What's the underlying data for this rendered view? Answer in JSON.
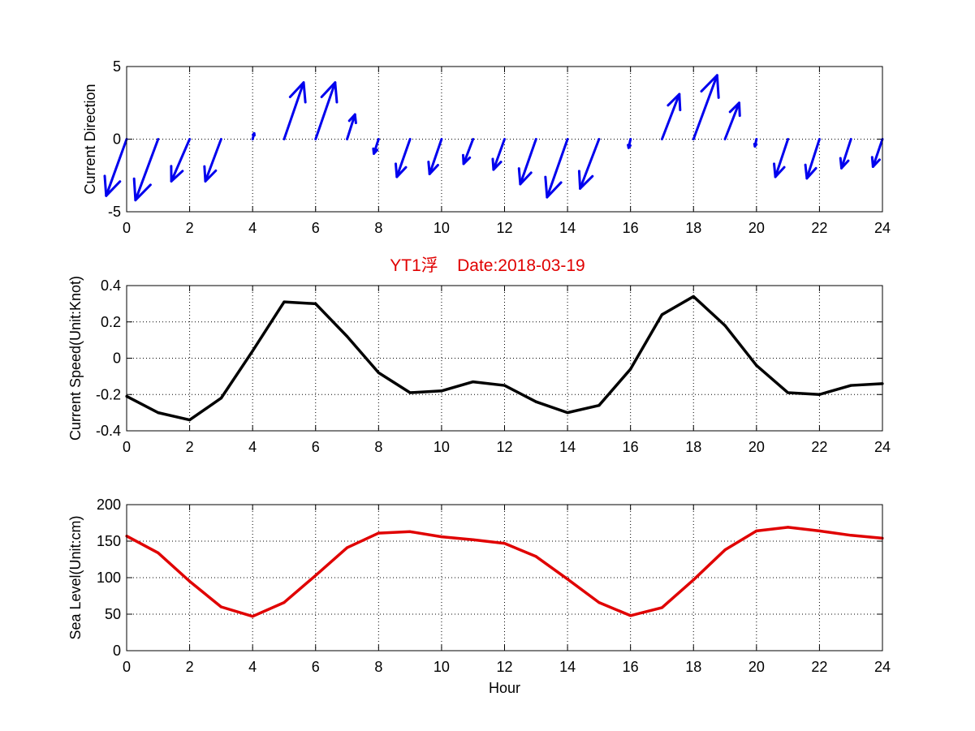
{
  "title": "YT1浮    Date:2018-03-19",
  "xlabel_bottom": "Hour",
  "chart_data": [
    {
      "type": "quiver",
      "ylabel": "Current Direction",
      "xlim": [
        0,
        24
      ],
      "ylim": [
        -5,
        5
      ],
      "xticks": [
        0,
        2,
        4,
        6,
        8,
        10,
        12,
        14,
        16,
        18,
        20,
        22,
        24
      ],
      "yticks": [
        -5,
        0,
        5
      ],
      "grid": true,
      "color": "#0000ee",
      "x": [
        0,
        1,
        2,
        3,
        4,
        5,
        6,
        7,
        8,
        9,
        10,
        11,
        12,
        13,
        14,
        15,
        16,
        17,
        18,
        19,
        20,
        21,
        22,
        23,
        24
      ],
      "u": [
        -0.65,
        -0.72,
        -0.58,
        -0.5,
        0.05,
        0.62,
        0.62,
        0.25,
        -0.15,
        -0.42,
        -0.38,
        -0.3,
        -0.35,
        -0.5,
        -0.65,
        -0.6,
        -0.06,
        0.55,
        0.75,
        0.45,
        -0.05,
        -0.4,
        -0.4,
        -0.3,
        -0.3
      ],
      "v": [
        -3.9,
        -4.2,
        -2.9,
        -2.9,
        0.4,
        3.9,
        3.9,
        1.7,
        -1.0,
        -2.6,
        -2.4,
        -1.7,
        -2.1,
        -3.1,
        -4.0,
        -3.4,
        -0.6,
        3.1,
        4.4,
        2.5,
        -0.5,
        -2.6,
        -2.7,
        -2.0,
        -1.9
      ]
    },
    {
      "type": "line",
      "ylabel": "Current Speed(Unit:Knot)",
      "xlim": [
        0,
        24
      ],
      "ylim": [
        -0.4,
        0.4
      ],
      "xticks": [
        0,
        2,
        4,
        6,
        8,
        10,
        12,
        14,
        16,
        18,
        20,
        22,
        24
      ],
      "yticks": [
        -0.4,
        -0.2,
        0,
        0.2,
        0.4
      ],
      "grid": true,
      "color": "#000000",
      "x": [
        0,
        1,
        2,
        3,
        4,
        5,
        6,
        7,
        8,
        9,
        10,
        11,
        12,
        13,
        14,
        15,
        16,
        17,
        18,
        19,
        20,
        21,
        22,
        23,
        24
      ],
      "y": [
        -0.21,
        -0.3,
        -0.34,
        -0.22,
        0.04,
        0.31,
        0.3,
        0.12,
        -0.08,
        -0.19,
        -0.18,
        -0.13,
        -0.15,
        -0.24,
        -0.3,
        -0.26,
        -0.06,
        0.24,
        0.34,
        0.18,
        -0.04,
        -0.19,
        -0.2,
        -0.15,
        -0.14
      ]
    },
    {
      "type": "line",
      "ylabel": "Sea Level(Unit:cm)",
      "xlabel": "Hour",
      "xlim": [
        0,
        24
      ],
      "ylim": [
        0,
        200
      ],
      "xticks": [
        0,
        2,
        4,
        6,
        8,
        10,
        12,
        14,
        16,
        18,
        20,
        22,
        24
      ],
      "yticks": [
        0,
        50,
        100,
        150,
        200
      ],
      "grid": true,
      "color": "#e00000",
      "x": [
        0,
        1,
        2,
        3,
        4,
        5,
        6,
        7,
        8,
        9,
        10,
        11,
        12,
        13,
        14,
        15,
        16,
        17,
        18,
        19,
        20,
        21,
        22,
        23,
        24
      ],
      "y": [
        157,
        134,
        95,
        60,
        47,
        66,
        103,
        141,
        161,
        163,
        156,
        152,
        147,
        129,
        98,
        66,
        48,
        59,
        97,
        138,
        164,
        169,
        164,
        158,
        154
      ]
    }
  ]
}
